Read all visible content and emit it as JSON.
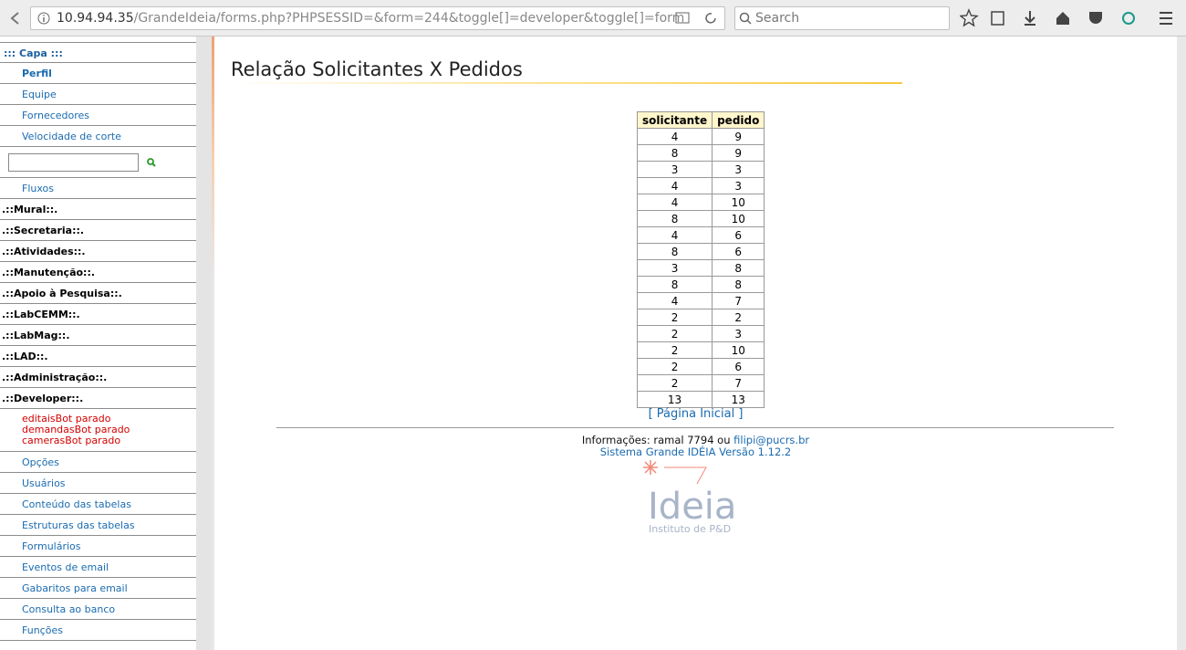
{
  "browser": {
    "url_host": "10.94.94.35",
    "url_path": "/GrandeIdeia/forms.php?PHPSESSID=&form=244&toggle[]=developer&toggle[]=form",
    "search_placeholder": "Search"
  },
  "sidebar": {
    "capa": "::: Capa :::",
    "top_links": [
      "Perfil",
      "Equipe",
      "Fornecedores",
      "Velocidade de corte"
    ],
    "fluxos": "Fluxos",
    "sections": [
      ".::Mural::.",
      ".::Secretaria::.",
      ".::Atividades::.",
      ".::Manutenção::.",
      ".::Apoio à Pesquisa::.",
      ".::LabCEMM::.",
      ".::LabMag::.",
      ".::LAD::.",
      ".::Administração::.",
      ".::Developer::."
    ],
    "bots": [
      "editaisBot parado",
      "demandasBot parado",
      "camerasBot parado"
    ],
    "developer_links": [
      "Opções",
      "Usuários",
      "Conteúdo das tabelas",
      "Estruturas das tabelas",
      "Formulários",
      "Eventos de email",
      "Gabaritos para email",
      "Consulta ao banco",
      "Funções"
    ]
  },
  "main": {
    "title": "Relação Solicitantes X Pedidos",
    "table": {
      "headers": [
        "solicitante",
        "pedido"
      ],
      "rows": [
        [
          4,
          9
        ],
        [
          8,
          9
        ],
        [
          3,
          3
        ],
        [
          4,
          3
        ],
        [
          4,
          10
        ],
        [
          8,
          10
        ],
        [
          4,
          6
        ],
        [
          8,
          6
        ],
        [
          3,
          8
        ],
        [
          8,
          8
        ],
        [
          4,
          7
        ],
        [
          2,
          2
        ],
        [
          2,
          3
        ],
        [
          2,
          10
        ],
        [
          2,
          6
        ],
        [
          2,
          7
        ],
        [
          13,
          13
        ]
      ]
    },
    "home_link": "[ Página Inicial ]",
    "footer": {
      "info": "Informações: ramal 7794 ou",
      "email": "filipi@pucrs.br",
      "version": "Sistema Grande IDÉIA Versão 1.12.2"
    },
    "logo": {
      "name": "Ideia",
      "subtitle": "Instituto de P&D"
    }
  }
}
